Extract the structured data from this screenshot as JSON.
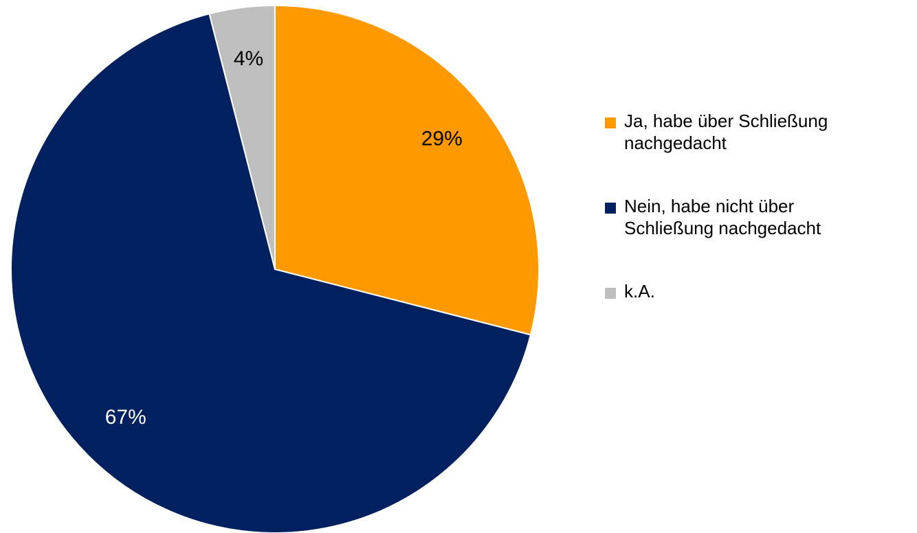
{
  "chart_data": {
    "type": "pie",
    "categories": [
      "Ja, habe über Schließung nachgedacht",
      "Nein, habe nicht über Schließung nachgedacht",
      "k.A."
    ],
    "values": [
      29,
      67,
      4
    ],
    "value_labels": [
      "29%",
      "67%",
      "4%"
    ],
    "colors": [
      "#ff9900",
      "#002060",
      "#bfbfbf"
    ],
    "legend": "right"
  }
}
